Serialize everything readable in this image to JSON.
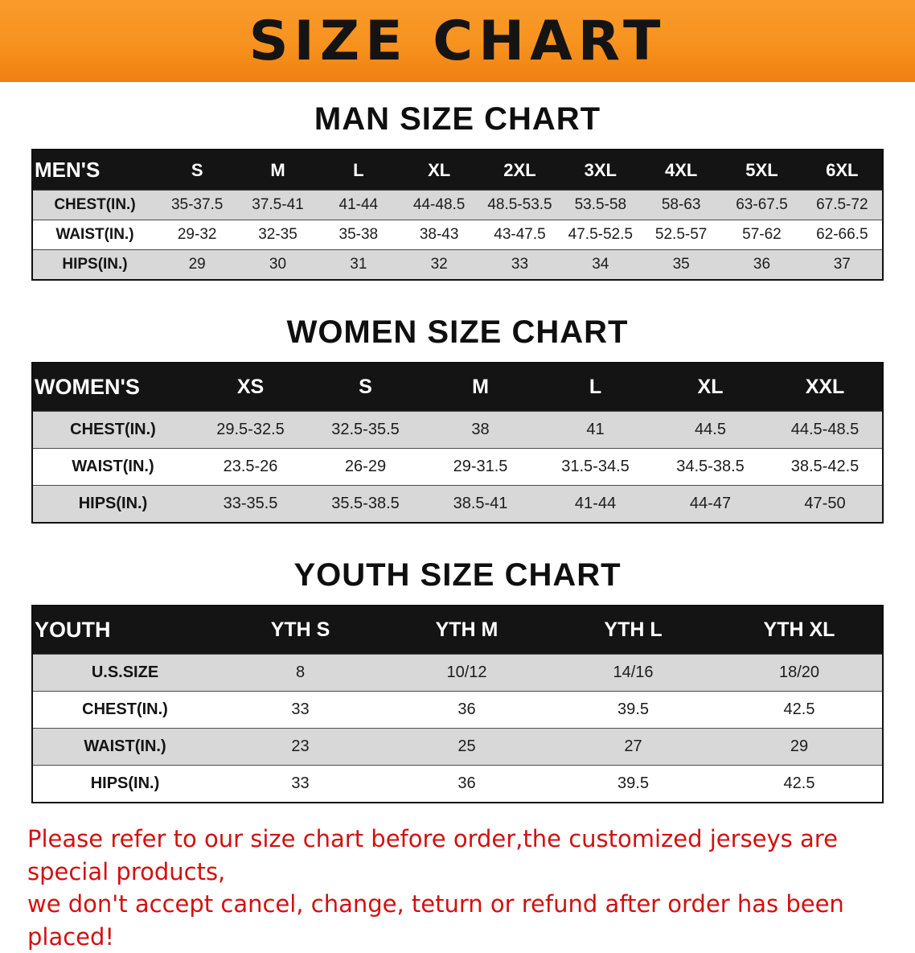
{
  "banner": {
    "title": "SIZE CHART"
  },
  "colors": {
    "banner_orange": "#f7921e",
    "table_header_black": "#141414",
    "row_alt_gray": "#d8d8d8",
    "footer_red": "#d21010"
  },
  "chart_data": [
    {
      "type": "table",
      "title": "MAN SIZE CHART",
      "columns": [
        "MEN'S",
        "S",
        "M",
        "L",
        "XL",
        "2XL",
        "3XL",
        "4XL",
        "5XL",
        "6XL"
      ],
      "rows": [
        [
          "CHEST(IN.)",
          "35-37.5",
          "37.5-41",
          "41-44",
          "44-48.5",
          "48.5-53.5",
          "53.5-58",
          "58-63",
          "63-67.5",
          "67.5-72"
        ],
        [
          "WAIST(IN.)",
          "29-32",
          "32-35",
          "35-38",
          "38-43",
          "43-47.5",
          "47.5-52.5",
          "52.5-57",
          "57-62",
          "62-66.5"
        ],
        [
          "HIPS(IN.)",
          "29",
          "30",
          "31",
          "32",
          "33",
          "34",
          "35",
          "36",
          "37"
        ]
      ]
    },
    {
      "type": "table",
      "title": "WOMEN SIZE CHART",
      "columns": [
        "WOMEN'S",
        "XS",
        "S",
        "M",
        "L",
        "XL",
        "XXL"
      ],
      "rows": [
        [
          "CHEST(IN.)",
          "29.5-32.5",
          "32.5-35.5",
          "38",
          "41",
          "44.5",
          "44.5-48.5"
        ],
        [
          "WAIST(IN.)",
          "23.5-26",
          "26-29",
          "29-31.5",
          "31.5-34.5",
          "34.5-38.5",
          "38.5-42.5"
        ],
        [
          "HIPS(IN.)",
          "33-35.5",
          "35.5-38.5",
          "38.5-41",
          "41-44",
          "44-47",
          "47-50"
        ]
      ]
    },
    {
      "type": "table",
      "title": "YOUTH SIZE CHART",
      "columns": [
        "YOUTH",
        "YTH S",
        "YTH M",
        "YTH L",
        "YTH XL"
      ],
      "rows": [
        [
          "U.S.SIZE",
          "8",
          "10/12",
          "14/16",
          "18/20"
        ],
        [
          "CHEST(IN.)",
          "33",
          "36",
          "39.5",
          "42.5"
        ],
        [
          "WAIST(IN.)",
          "23",
          "25",
          "27",
          "29"
        ],
        [
          "HIPS(IN.)",
          "33",
          "36",
          "39.5",
          "42.5"
        ]
      ]
    }
  ],
  "footer": {
    "line1": "Please refer to our size chart before order,the customized jerseys are special products,",
    "line2": "we don't accept cancel, change, teturn or refund after order has been placed!"
  }
}
